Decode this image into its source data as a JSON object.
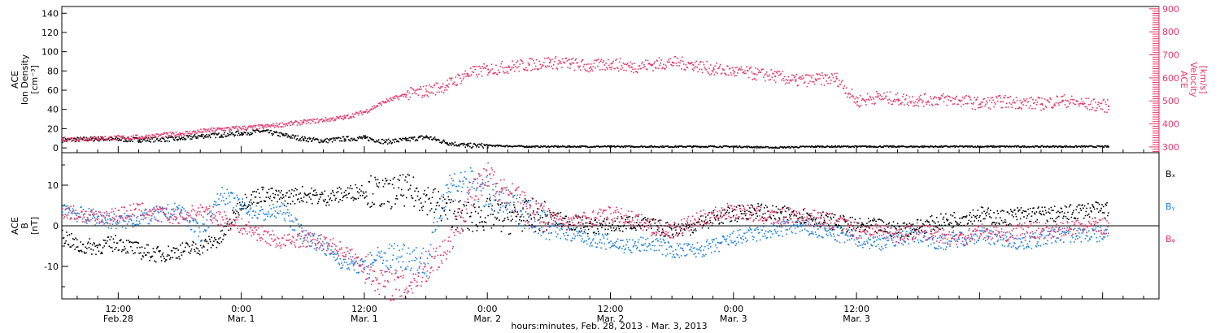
{
  "colors": {
    "axis": "#000000",
    "density": "#000000",
    "velocity": "#e8336b",
    "bx": "#000000",
    "by": "#1a7fe0",
    "bz": "#e8336b"
  },
  "chart_data": [
    {
      "type": "scatter",
      "panel": "top",
      "x_unit": "hours since Feb. 28 00:00",
      "xlim": [
        6.5,
        113.5
      ],
      "left_axis": {
        "label_lines": [
          "ACE",
          "Ion Density",
          "[cm⁻³]"
        ],
        "ylim": [
          -5,
          147
        ],
        "ticks": [
          0,
          20,
          40,
          60,
          80,
          100,
          120,
          140
        ],
        "tick_labels": [
          "0",
          "20",
          "40",
          "60",
          "80",
          "100",
          "120",
          "140"
        ]
      },
      "right_axis": {
        "label_lines": [
          "ACE",
          "Velocity",
          "[km/s]"
        ],
        "ylim": [
          275,
          910
        ],
        "ticks": [
          300,
          400,
          500,
          600,
          700,
          800,
          900
        ],
        "tick_labels": [
          "300",
          "400",
          "500",
          "600",
          "700",
          "800",
          "900"
        ]
      },
      "series": [
        {
          "key": "density",
          "axis": "left",
          "x": [
            6.5,
            10,
            14,
            18,
            20,
            22,
            24,
            26,
            28,
            30,
            32,
            34,
            36,
            38,
            40,
            42,
            44,
            46,
            48,
            52,
            56,
            60,
            64,
            68,
            72,
            76,
            80,
            84,
            88,
            92,
            96,
            100,
            104,
            108.5
          ],
          "y": [
            9,
            10,
            9,
            10,
            13,
            14,
            16,
            18,
            14,
            10,
            8,
            10,
            11,
            7,
            9,
            12,
            6,
            3,
            3,
            2,
            2,
            2,
            2,
            2,
            2,
            1,
            2,
            2,
            2,
            2,
            2,
            2,
            2,
            2
          ]
        },
        {
          "key": "velocity",
          "axis": "right",
          "x": [
            6.5,
            10,
            14,
            18,
            22,
            26,
            30,
            34,
            36,
            38,
            40,
            42,
            44,
            46,
            48,
            50,
            52,
            54,
            56,
            58,
            60,
            62,
            64,
            66,
            68,
            70,
            72,
            74,
            76,
            78,
            80,
            82,
            84,
            86,
            88,
            90,
            92,
            94,
            96,
            98,
            100,
            102,
            104,
            106,
            108.5
          ],
          "y": [
            335,
            340,
            345,
            360,
            380,
            390,
            410,
            430,
            455,
            500,
            530,
            545,
            570,
            620,
            640,
            650,
            660,
            670,
            665,
            650,
            665,
            650,
            660,
            670,
            660,
            640,
            630,
            620,
            610,
            590,
            595,
            600,
            500,
            520,
            510,
            505,
            510,
            505,
            490,
            500,
            495,
            490,
            505,
            490,
            480
          ]
        }
      ]
    },
    {
      "type": "scatter",
      "panel": "bottom",
      "x_unit": "hours since Feb. 28 00:00",
      "xlim": [
        6.5,
        113.5
      ],
      "y_axis": {
        "label_lines": [
          "ACE",
          "B",
          "[nT]"
        ],
        "ylim": [
          -18,
          18
        ],
        "ticks": [
          -10,
          0,
          10
        ],
        "tick_labels": [
          "-10",
          "0",
          "10"
        ]
      },
      "zero_line": true,
      "legend_placement": "right",
      "series": [
        {
          "key": "bx",
          "name": "Bₓ",
          "x": [
            6.5,
            8,
            10,
            12,
            14,
            16,
            18,
            20,
            22,
            24,
            26,
            28,
            30,
            32,
            34,
            36,
            38,
            40,
            42,
            44,
            46,
            48,
            50,
            52,
            54,
            56,
            58,
            60,
            62,
            64,
            66,
            68,
            70,
            72,
            74,
            76,
            78,
            80,
            82,
            84,
            86,
            88,
            90,
            92,
            94,
            96,
            98,
            100,
            102,
            104,
            106,
            108.5
          ],
          "y": [
            -2,
            -5,
            -5,
            -4,
            -6,
            -7,
            -6,
            -5,
            -3,
            6,
            8,
            7,
            8,
            7,
            8,
            9,
            8,
            9,
            7,
            4,
            2,
            3,
            2,
            3,
            2,
            1,
            0,
            0,
            1,
            0,
            -1,
            0,
            2,
            3,
            4,
            3,
            3,
            2,
            1,
            0,
            0,
            -1,
            0,
            1,
            2,
            3,
            2,
            3,
            3,
            3,
            4,
            4
          ]
        },
        {
          "key": "by",
          "name": "Bᵧ",
          "x": [
            6.5,
            8,
            10,
            12,
            14,
            16,
            18,
            20,
            22,
            24,
            26,
            28,
            30,
            32,
            34,
            36,
            38,
            40,
            42,
            44,
            46,
            48,
            50,
            52,
            54,
            56,
            58,
            60,
            62,
            64,
            66,
            68,
            70,
            72,
            74,
            76,
            78,
            80,
            82,
            84,
            86,
            88,
            90,
            92,
            94,
            96,
            98,
            100,
            102,
            104,
            106,
            108.5
          ],
          "y": [
            5,
            3,
            2,
            1,
            2,
            3,
            4,
            -2,
            8,
            5,
            3,
            4,
            -2,
            -5,
            -9,
            -10,
            -8,
            -7,
            -9,
            10,
            11,
            8,
            5,
            3,
            0,
            -2,
            -3,
            -4,
            -5,
            -4,
            -6,
            -6,
            -5,
            -3,
            -2,
            -1,
            0,
            -1,
            -2,
            -3,
            -4,
            -3,
            -2,
            -4,
            -3,
            -2,
            -3,
            -4,
            -3,
            -2,
            -2,
            -2
          ]
        },
        {
          "key": "bz",
          "name": "Bᵩ",
          "x": [
            6.5,
            8,
            10,
            12,
            14,
            16,
            18,
            20,
            22,
            24,
            26,
            28,
            30,
            32,
            34,
            36,
            38,
            40,
            42,
            44,
            46,
            48,
            50,
            52,
            54,
            56,
            58,
            60,
            62,
            64,
            66,
            68,
            70,
            72,
            74,
            76,
            78,
            80,
            82,
            84,
            86,
            88,
            90,
            92,
            94,
            96,
            98,
            100,
            102,
            104,
            106,
            108.5
          ],
          "y": [
            4,
            3,
            2,
            3,
            4,
            3,
            2,
            4,
            2,
            0,
            -2,
            -4,
            -3,
            -4,
            -6,
            -10,
            -14,
            -15,
            -10,
            -5,
            6,
            12,
            8,
            4,
            2,
            1,
            2,
            3,
            2,
            0,
            -1,
            1,
            3,
            4,
            3,
            2,
            3,
            2,
            1,
            -1,
            -1,
            -2,
            -1,
            -2,
            -3,
            -1,
            -2,
            -1,
            -1,
            -1,
            0,
            0
          ]
        }
      ]
    }
  ],
  "x_axis": {
    "ticks": [
      12,
      24,
      36,
      48,
      60,
      72,
      84,
      96,
      108
    ],
    "tick_labels": [
      {
        "time": "12:00",
        "date": "Feb.28"
      },
      {
        "time": "0:00",
        "date": "Mar. 1"
      },
      {
        "time": "12:00",
        "date": "Mar. 1"
      },
      {
        "time": "0:00",
        "date": "Mar. 2"
      },
      {
        "time": "12:00",
        "date": "Mar. 2"
      },
      {
        "time": "0:00",
        "date": "Mar. 3"
      },
      {
        "time": "12:00",
        "date": "Mar. 3"
      }
    ],
    "labeled_ticks": [
      12,
      24,
      36,
      48,
      60,
      72,
      84
    ],
    "xlabel": "hours:minutes, Feb. 28, 2013 - Mar.  3, 2013"
  }
}
